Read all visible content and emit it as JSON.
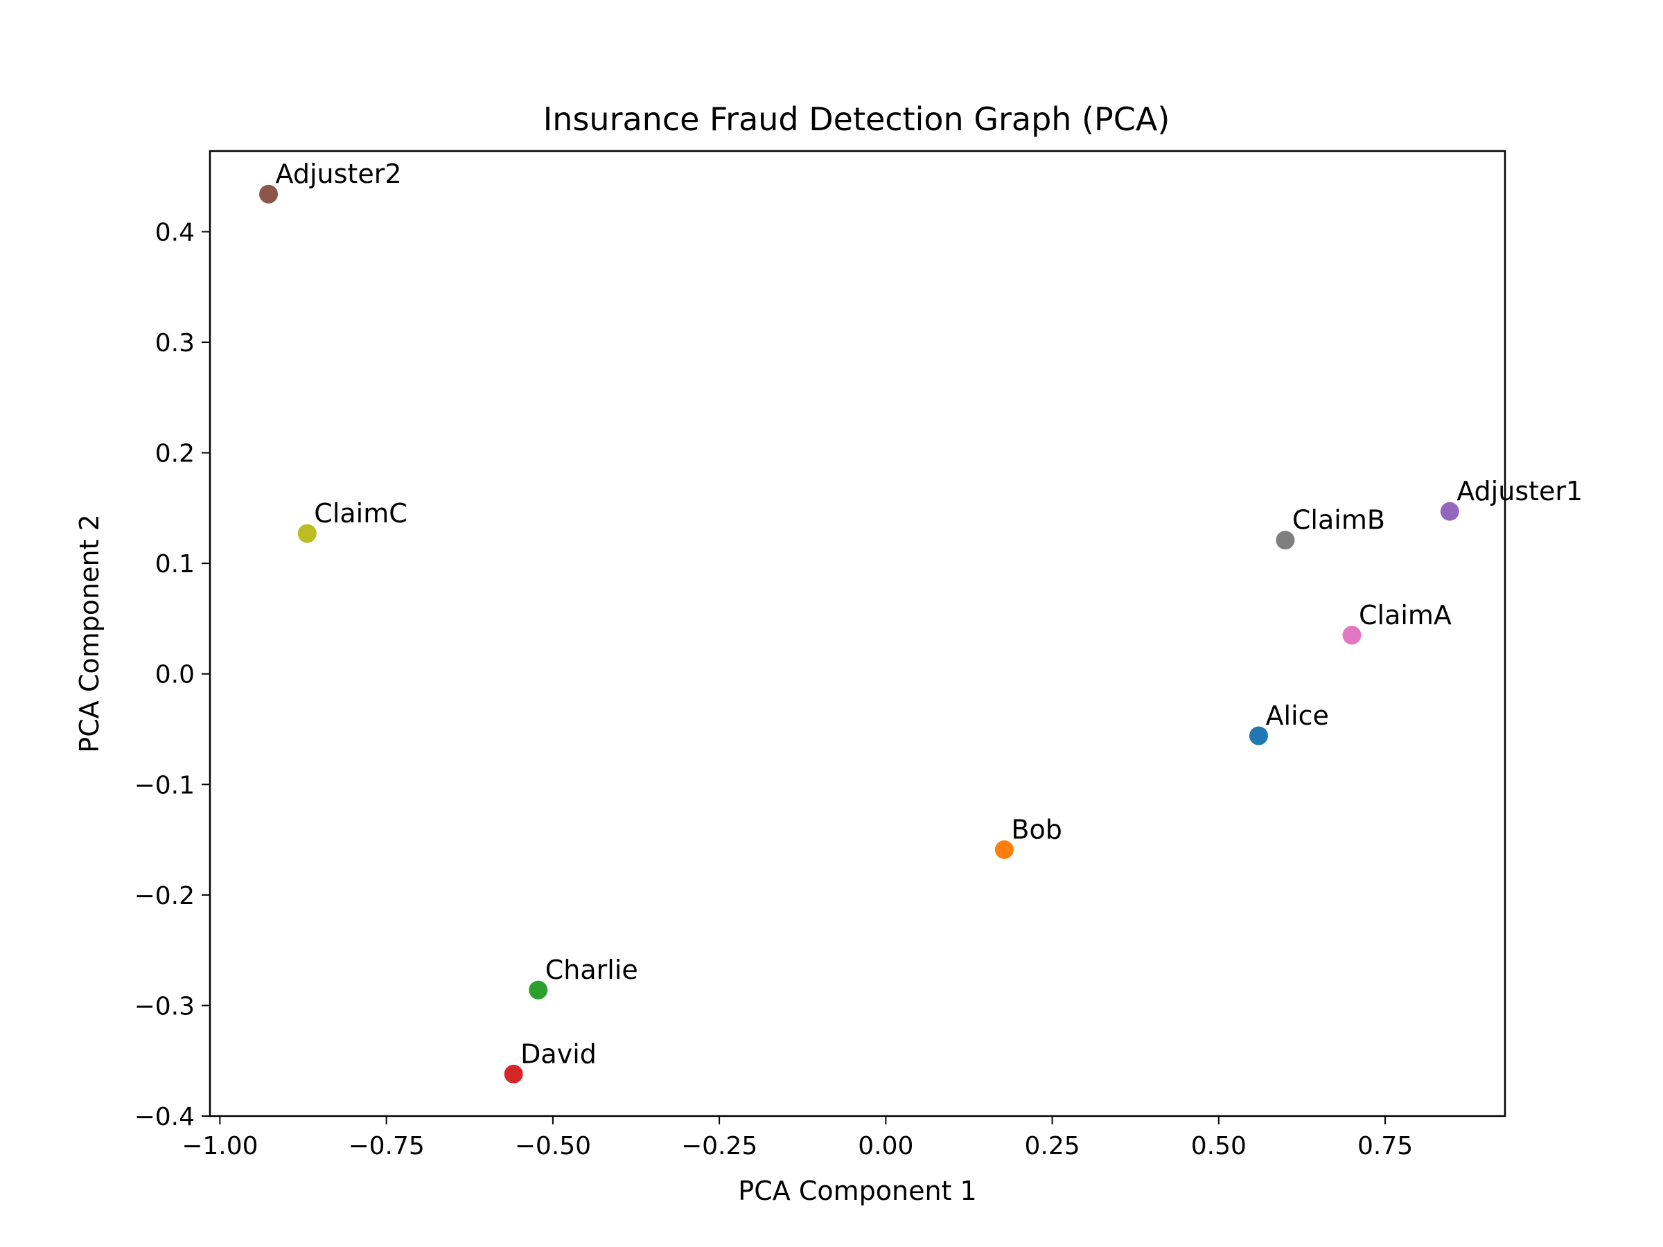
{
  "chart_data": {
    "type": "scatter",
    "title": "Insurance Fraud Detection Graph (PCA)",
    "xlabel": "PCA Component 1",
    "ylabel": "PCA Component 2",
    "xlim": [
      -1.015,
      0.93
    ],
    "ylim": [
      -0.4,
      0.473
    ],
    "grid": false,
    "x_ticks": [
      {
        "value": -1.0,
        "label": "−1.00"
      },
      {
        "value": -0.75,
        "label": "−0.75"
      },
      {
        "value": -0.5,
        "label": "−0.50"
      },
      {
        "value": -0.25,
        "label": "−0.25"
      },
      {
        "value": 0.0,
        "label": "0.00"
      },
      {
        "value": 0.25,
        "label": "0.25"
      },
      {
        "value": 0.5,
        "label": "0.50"
      },
      {
        "value": 0.75,
        "label": "0.75"
      }
    ],
    "y_ticks": [
      {
        "value": -0.4,
        "label": "−0.4"
      },
      {
        "value": -0.3,
        "label": "−0.3"
      },
      {
        "value": -0.2,
        "label": "−0.2"
      },
      {
        "value": -0.1,
        "label": "−0.1"
      },
      {
        "value": 0.0,
        "label": "0.0"
      },
      {
        "value": 0.1,
        "label": "0.1"
      },
      {
        "value": 0.2,
        "label": "0.2"
      },
      {
        "value": 0.3,
        "label": "0.3"
      },
      {
        "value": 0.4,
        "label": "0.4"
      }
    ],
    "points": [
      {
        "label": "Alice",
        "x": 0.56,
        "y": -0.056,
        "color": "#1f77b4"
      },
      {
        "label": "Bob",
        "x": 0.178,
        "y": -0.159,
        "color": "#ff7f0e"
      },
      {
        "label": "Charlie",
        "x": -0.522,
        "y": -0.286,
        "color": "#2ca02c"
      },
      {
        "label": "David",
        "x": -0.559,
        "y": -0.362,
        "color": "#d62728"
      },
      {
        "label": "Adjuster1",
        "x": 0.847,
        "y": 0.147,
        "color": "#9467bd"
      },
      {
        "label": "Adjuster2",
        "x": -0.927,
        "y": 0.434,
        "color": "#8c564b"
      },
      {
        "label": "ClaimA",
        "x": 0.7,
        "y": 0.035,
        "color": "#e377c2"
      },
      {
        "label": "ClaimB",
        "x": 0.6,
        "y": 0.121,
        "color": "#7f7f7f"
      },
      {
        "label": "ClaimC",
        "x": -0.869,
        "y": 0.127,
        "color": "#bcbd22"
      }
    ]
  }
}
